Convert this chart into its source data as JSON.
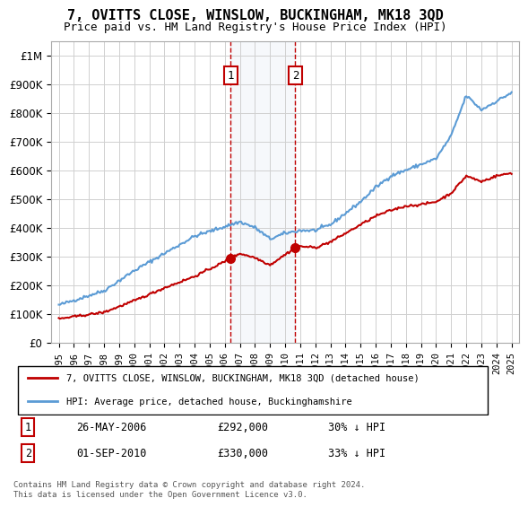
{
  "title": "7, OVITTS CLOSE, WINSLOW, BUCKINGHAM, MK18 3QD",
  "subtitle": "Price paid vs. HM Land Registry's House Price Index (HPI)",
  "legend_line1": "7, OVITTS CLOSE, WINSLOW, BUCKINGHAM, MK18 3QD (detached house)",
  "legend_line2": "HPI: Average price, detached house, Buckinghamshire",
  "footer": "Contains HM Land Registry data © Crown copyright and database right 2024.\nThis data is licensed under the Open Government Licence v3.0.",
  "sale1_label": "1",
  "sale1_date": "26-MAY-2006",
  "sale1_price": "£292,000",
  "sale1_hpi": "30% ↓ HPI",
  "sale2_label": "2",
  "sale2_date": "01-SEP-2010",
  "sale2_price": "£330,000",
  "sale2_hpi": "33% ↓ HPI",
  "sale1_x": 2006.4,
  "sale1_y": 292000,
  "sale2_x": 2010.67,
  "sale2_y": 330000,
  "hpi_color": "#5b9bd5",
  "price_color": "#c00000",
  "marker_box_color": "#c00000",
  "background_color": "#ffffff",
  "highlight_color": "#dce6f1",
  "grid_color": "#d0d0d0",
  "ylim": [
    0,
    1050000
  ],
  "xlim": [
    1994.5,
    2025.5
  ]
}
